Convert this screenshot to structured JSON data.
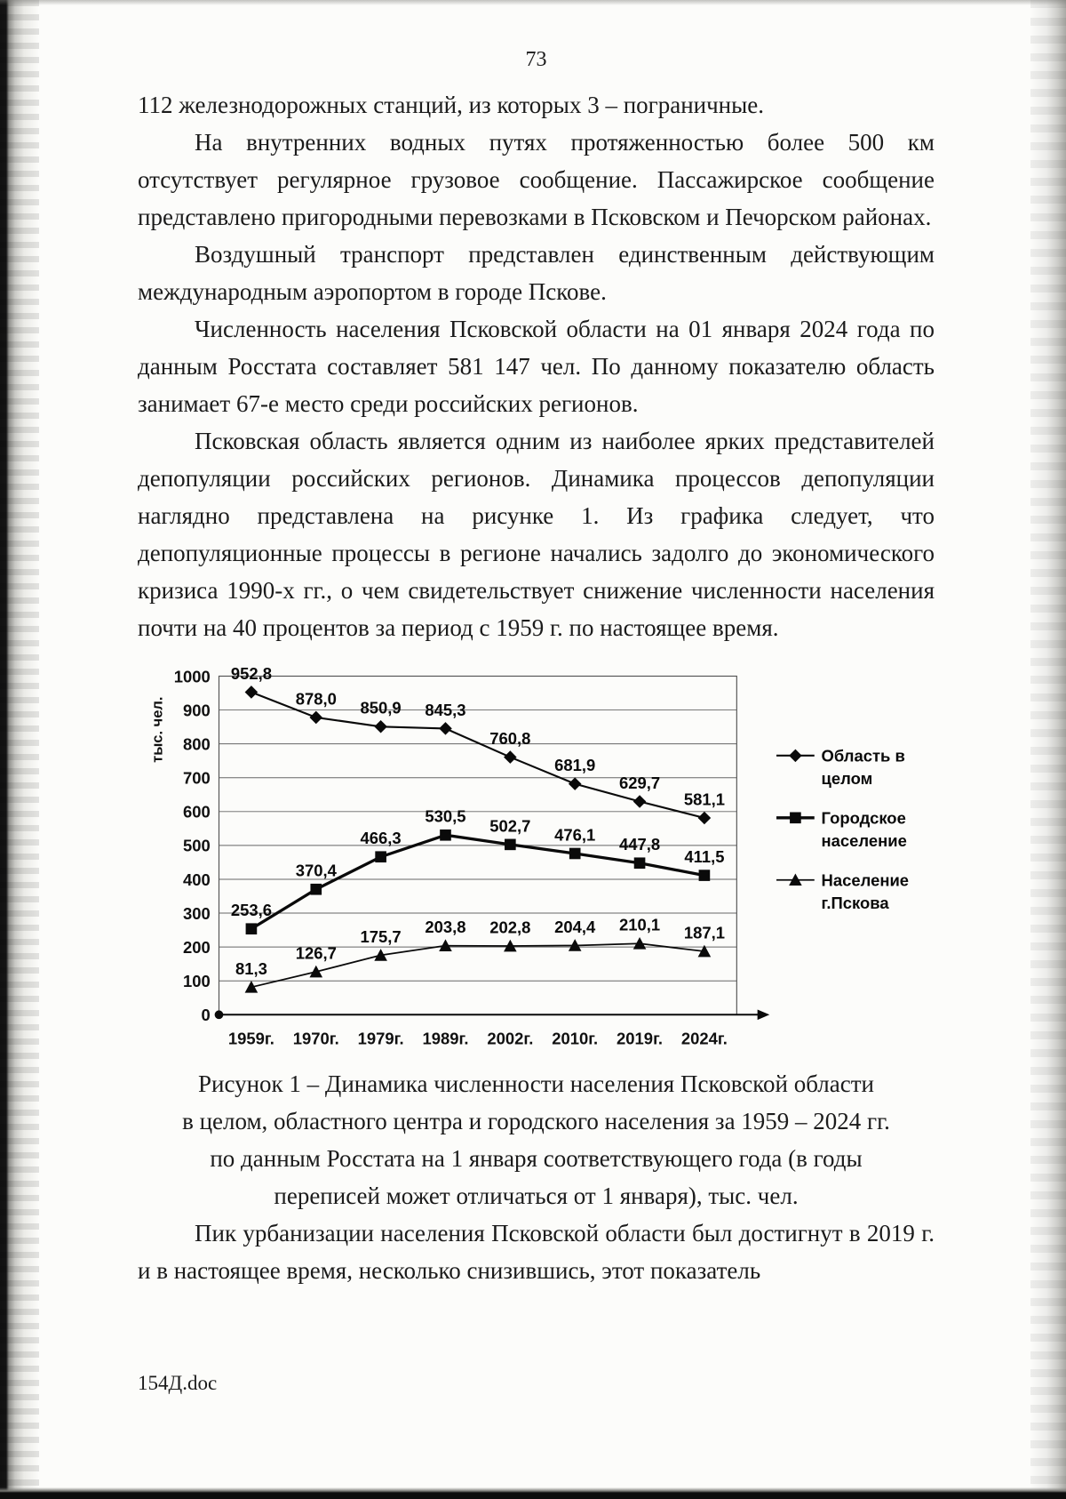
{
  "page_number": "73",
  "paragraphs": [
    "112 железнодорожных станций, из которых 3 – пограничные.",
    "На внутренних водных путях протяженностью более 500 км отсутствует регулярное грузовое сообщение. Пассажирское сообщение представлено пригородными перевозками в Псковском и Печорском районах.",
    "Воздушный транспорт представлен единственным действующим международным аэропортом в городе Пскове.",
    "Численность населения Псковской области на 01 января 2024 года по данным Росстата составляет 581 147 чел. По данному показателю область занимает 67-е место среди российских регионов.",
    "Псковская область является одним из наиболее ярких представителей депопуляции российских регионов. Динамика процессов депопуляции наглядно представлена на рисунке 1. Из графика следует, что депопуляционные процессы в регионе начались задолго до экономического кризиса 1990-х гг., о чем свидетельствует снижение численности населения почти на 40 процентов за период с 1959 г. по настоящее время.",
    "Пик урбанизации населения Псковской области был достигнут в 2019 г. и в настоящее время, несколько снизившись, этот показатель"
  ],
  "chart_data": {
    "type": "line",
    "ylabel": "тыс. чел.",
    "ylim": [
      0,
      1000
    ],
    "ytick_step": 100,
    "grid": true,
    "legend_position": "right",
    "categories": [
      "1959г.",
      "1970г.",
      "1979г.",
      "1989г.",
      "2002г.",
      "2010г.",
      "2019г.",
      "2024г."
    ],
    "series": [
      {
        "name": "Область в целом",
        "legend_lines": [
          "Область в",
          "целом"
        ],
        "marker": "diamond",
        "line_width": 2.2,
        "values": [
          952.8,
          878.0,
          850.9,
          845.3,
          760.8,
          681.9,
          629.7,
          581.1
        ],
        "labels": [
          "952,8",
          "878,0",
          "850,9",
          "845,3",
          "760,8",
          "681,9",
          "629,7",
          "581,1"
        ]
      },
      {
        "name": "Городское население",
        "legend_lines": [
          "Городское",
          "население"
        ],
        "marker": "square",
        "line_width": 3.4,
        "values": [
          253.6,
          370.4,
          466.3,
          530.5,
          502.7,
          476.1,
          447.8,
          411.5
        ],
        "labels": [
          "253,6",
          "370,4",
          "466,3",
          "530,5",
          "502,7",
          "476,1",
          "447,8",
          "411,5"
        ]
      },
      {
        "name": "Население г.Пскова",
        "legend_lines": [
          "Население",
          "г.Пскова"
        ],
        "marker": "triangle",
        "line_width": 1.8,
        "values": [
          81.3,
          126.7,
          175.7,
          203.8,
          202.8,
          204.4,
          210.1,
          187.1
        ],
        "labels": [
          "81,3",
          "126,7",
          "175,7",
          "203,8",
          "202,8",
          "204,4",
          "210,1",
          "187,1"
        ]
      }
    ]
  },
  "figure_caption_lines": [
    "Рисунок 1 – Динамика численности населения Псковской области",
    "в целом, областного центра и городского населения за 1959 – 2024 гг.",
    "по данным Росстата на 1 января соответствующего года (в годы",
    "переписей может отличаться от 1 января), тыс. чел."
  ],
  "footer_filename": "154Д.doc"
}
